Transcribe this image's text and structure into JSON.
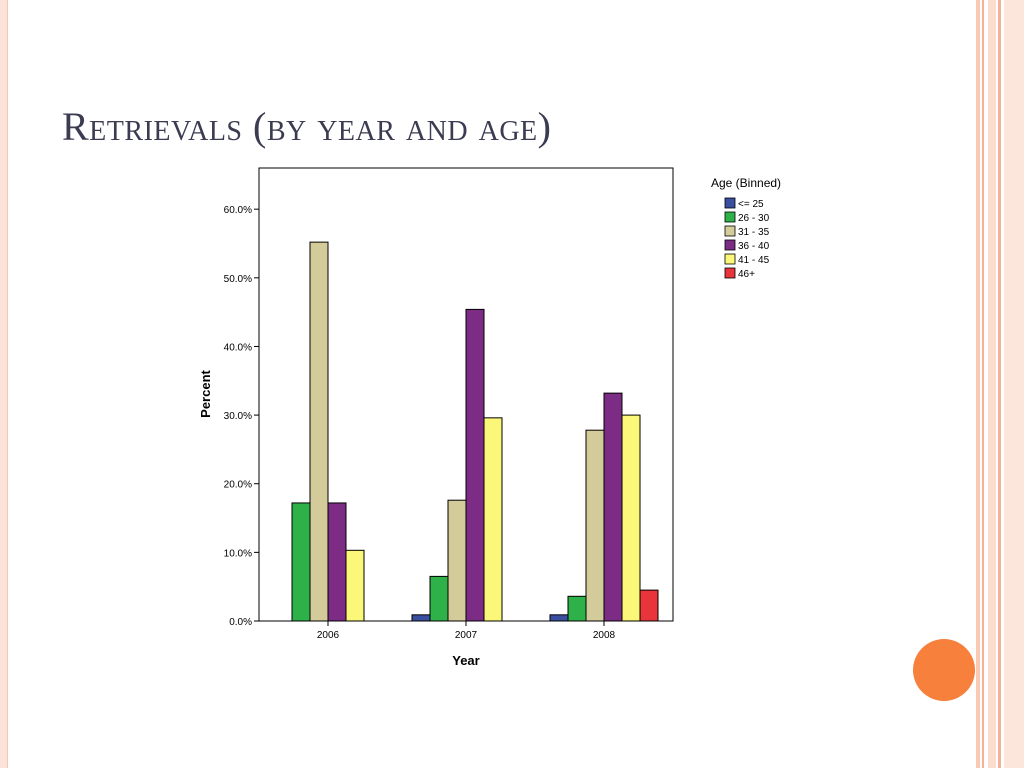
{
  "slide": {
    "title": "Retrievals (by year and age)"
  },
  "colors": {
    "accent": "#f7803c",
    "series": [
      "#3a4fa0",
      "#2fb14a",
      "#d4cb9b",
      "#7d2c86",
      "#fbf879",
      "#e8343a"
    ]
  },
  "chart_data": {
    "type": "bar",
    "categories": [
      "2006",
      "2007",
      "2008"
    ],
    "xlabel": "Year",
    "ylabel": "Percent",
    "ylim": [
      0,
      66
    ],
    "yticks": [
      0,
      10,
      20,
      30,
      40,
      50,
      60
    ],
    "ytick_labels": [
      "0.0%",
      "10.0%",
      "20.0%",
      "30.0%",
      "40.0%",
      "50.0%",
      "60.0%"
    ],
    "legend": {
      "title": "Age (Binned)",
      "placement": "right"
    },
    "series": [
      {
        "name": "<= 25",
        "color": "#3a4fa0",
        "values": [
          0,
          0.9,
          0.9
        ]
      },
      {
        "name": "26 - 30",
        "color": "#2fb14a",
        "values": [
          17.2,
          6.5,
          3.6
        ]
      },
      {
        "name": "31 - 35",
        "color": "#d4cb9b",
        "values": [
          55.2,
          17.6,
          27.8
        ]
      },
      {
        "name": "36 - 40",
        "color": "#7d2c86",
        "values": [
          17.2,
          45.4,
          33.2
        ]
      },
      {
        "name": "41 - 45",
        "color": "#fbf879",
        "values": [
          10.3,
          29.6,
          30.0
        ]
      },
      {
        "name": "46+",
        "color": "#e8343a",
        "values": [
          0,
          0,
          4.5
        ]
      }
    ]
  }
}
